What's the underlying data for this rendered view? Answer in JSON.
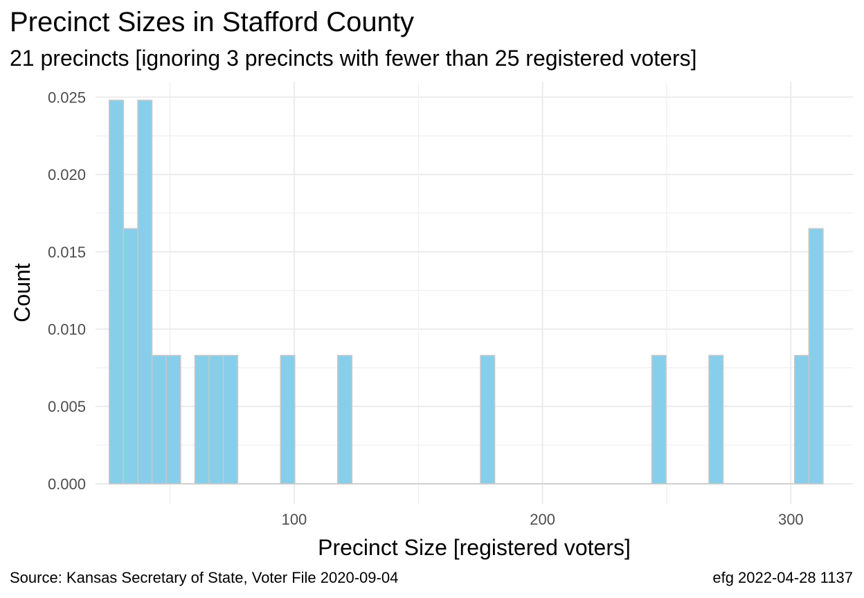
{
  "chart_data": {
    "type": "bar",
    "title": "Precinct Sizes in Stafford County",
    "subtitle": "21 precincts [ignoring 3 precincts with fewer than 25 registered voters]",
    "xlabel": "Precinct Size [registered voters]",
    "ylabel": "Count",
    "xlim": [
      20,
      325
    ],
    "ylim": [
      -0.0013,
      0.026
    ],
    "x_ticks": [
      100,
      200,
      300
    ],
    "x_minor_ticks": [
      50,
      150,
      250
    ],
    "y_ticks": [
      0.0,
      0.005,
      0.01,
      0.015,
      0.02,
      0.025
    ],
    "y_tick_labels": [
      "0.000",
      "0.005",
      "0.010",
      "0.015",
      "0.020",
      "0.025"
    ],
    "y_minor_ticks": [
      0.0025,
      0.0075,
      0.0125,
      0.0175,
      0.0225
    ],
    "x_tick_labels": [
      "100",
      "200",
      "300"
    ],
    "grid": true,
    "bars": [
      {
        "x0": 25.5,
        "x1": 31.25,
        "value": 0.0248
      },
      {
        "x0": 31.25,
        "x1": 37.0,
        "value": 0.0165
      },
      {
        "x0": 37.0,
        "x1": 42.75,
        "value": 0.0248
      },
      {
        "x0": 42.75,
        "x1": 48.5,
        "value": 0.0083
      },
      {
        "x0": 48.5,
        "x1": 54.25,
        "value": 0.0083
      },
      {
        "x0": 60.0,
        "x1": 65.75,
        "value": 0.0083
      },
      {
        "x0": 65.75,
        "x1": 71.5,
        "value": 0.0083
      },
      {
        "x0": 71.5,
        "x1": 77.25,
        "value": 0.0083
      },
      {
        "x0": 94.5,
        "x1": 100.25,
        "value": 0.0083
      },
      {
        "x0": 117.5,
        "x1": 123.25,
        "value": 0.0083
      },
      {
        "x0": 175.0,
        "x1": 180.75,
        "value": 0.0083
      },
      {
        "x0": 244.0,
        "x1": 249.75,
        "value": 0.0083
      },
      {
        "x0": 267.0,
        "x1": 272.75,
        "value": 0.0083
      },
      {
        "x0": 301.5,
        "x1": 307.25,
        "value": 0.0083
      },
      {
        "x0": 307.25,
        "x1": 313.0,
        "value": 0.0165
      }
    ],
    "baseline": {
      "x0": 25.5,
      "x1": 313.0
    },
    "bar_fill": "#87ceeb",
    "bar_stroke": "#c8c8c8",
    "grid_color": "#ebebeb"
  },
  "caption": {
    "source": "Source:  Kansas Secretary of State, Voter File  2020-09-04",
    "stamp": "efg 2022-04-28 1137"
  }
}
